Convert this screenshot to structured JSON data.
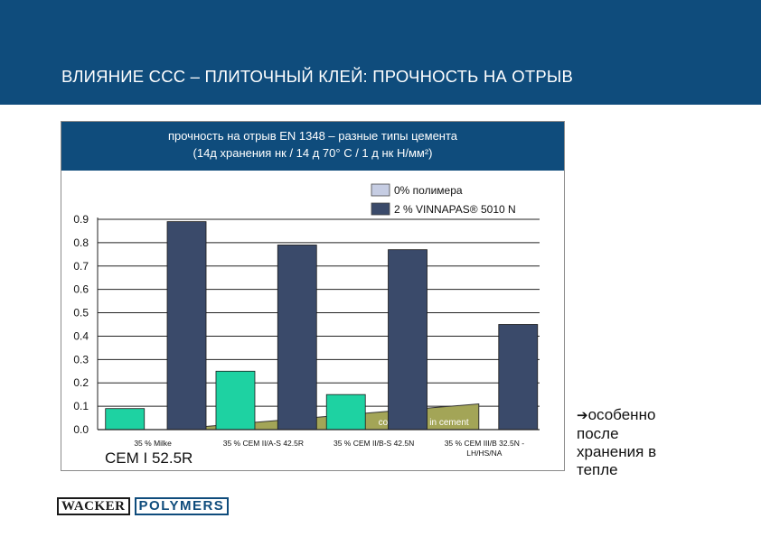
{
  "slide": {
    "title": "ВЛИЯНИЕ  ССС – ПЛИТОЧНЫЙ КЛЕЙ: ПРОЧНОСТЬ НА ОТРЫВ",
    "header_color": "#0f4c7c",
    "side_note": {
      "arrow": "➔",
      "lines": [
        "особенно",
        "после",
        "хранения в",
        "тепле"
      ]
    },
    "logo": {
      "part1": "WACKER",
      "part2": "POLYMERS"
    }
  },
  "chart_data": {
    "type": "bar",
    "title_line1": "прочность на отрыв EN 1348 – разные типы цемента",
    "title_line2": "(14д хранения нк / 14 д 70° С / 1 д нк Н/мм²)",
    "categories": [
      "35 % Milke",
      "35 % CEM II/A-S 42.5R",
      "35 % CEM II/B-S 42.5N",
      "35 % CEM III/B 32.5N -"
    ],
    "category_second_line": [
      "",
      "",
      "",
      "LH/HS/NA"
    ],
    "series": [
      {
        "name": "0% полимера",
        "values": [
          0.09,
          0.25,
          0.15,
          0.0
        ],
        "color": "#1ed2a2"
      },
      {
        "name": "2 % VINNAPAS® 5010 N",
        "values": [
          0.89,
          0.79,
          0.77,
          0.45
        ],
        "color": "#3a4a6a"
      }
    ],
    "legend_swatch_colors": [
      "#c6cde3",
      "#3a4a6a"
    ],
    "y_ticks": [
      "0.0",
      "0.1",
      "0.2",
      "0.3",
      "0.4",
      "0.5",
      "0.6",
      "0.7",
      "0.8",
      "0.9"
    ],
    "ylim": [
      0,
      0.9
    ],
    "gridlines": true,
    "legend_position": "top-right",
    "annotation": "content slag in cement",
    "annotation_color": "#a3a557",
    "subtitle_below": "CEM I 52.5R"
  }
}
